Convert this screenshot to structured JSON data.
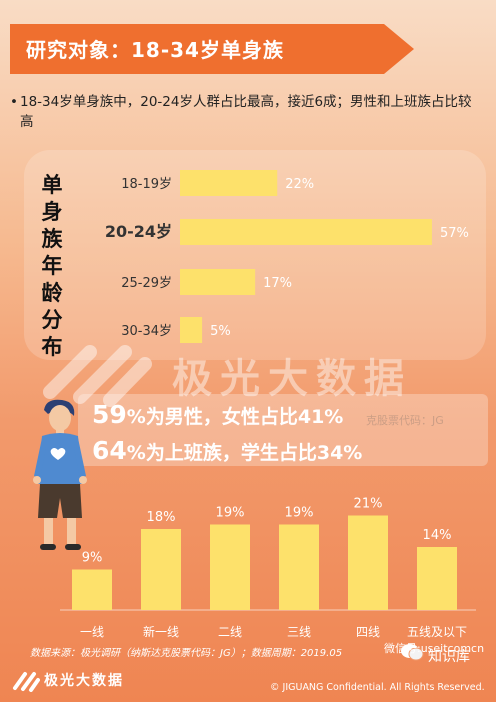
{
  "header": {
    "title": "研究对象：18-34岁单身族"
  },
  "summary": {
    "bullet": "•",
    "text": "18-34岁单身族中，20-24岁人群占比最高，接近6成；男性和上班族占比较高"
  },
  "colors": {
    "accent": "#ef6f2f",
    "bar": "#fde16b"
  },
  "watermark": {
    "text": "极光大数据",
    "subtext": "克股票代码：JG"
  },
  "stats": {
    "line1_num": "59",
    "line1_pct": "%",
    "line1_rest": "为男性，女性占比41%",
    "line2_num": "64",
    "line2_pct": "%",
    "line2_rest": "为上班族，学生占比34%"
  },
  "chart_data": [
    {
      "type": "bar",
      "orientation": "horizontal",
      "title": "单身族年龄分布",
      "categories": [
        "18-19岁",
        "20-24岁",
        "25-29岁",
        "30-34岁"
      ],
      "values": [
        22,
        57,
        17,
        5
      ],
      "value_labels": [
        "22%",
        "57%",
        "17%",
        "5%"
      ]
    },
    {
      "type": "bar",
      "orientation": "vertical",
      "categories": [
        "一线",
        "新一线",
        "二线",
        "三线",
        "四线",
        "五线及以下"
      ],
      "values": [
        9,
        18,
        19,
        19,
        21,
        14
      ],
      "value_labels": [
        "9%",
        "18%",
        "19%",
        "19%",
        "21%",
        "14%"
      ]
    }
  ],
  "footer": {
    "source": "数据来源：极光调研（纳斯达克股票代码：JG）；数据周期：2019.05",
    "logo_text": "极光大数据",
    "wechat": "微信号:useitcomcn",
    "zhishi": "知识库",
    "copyright": "© JIGUANG Confidential. All Rights Reserved."
  }
}
